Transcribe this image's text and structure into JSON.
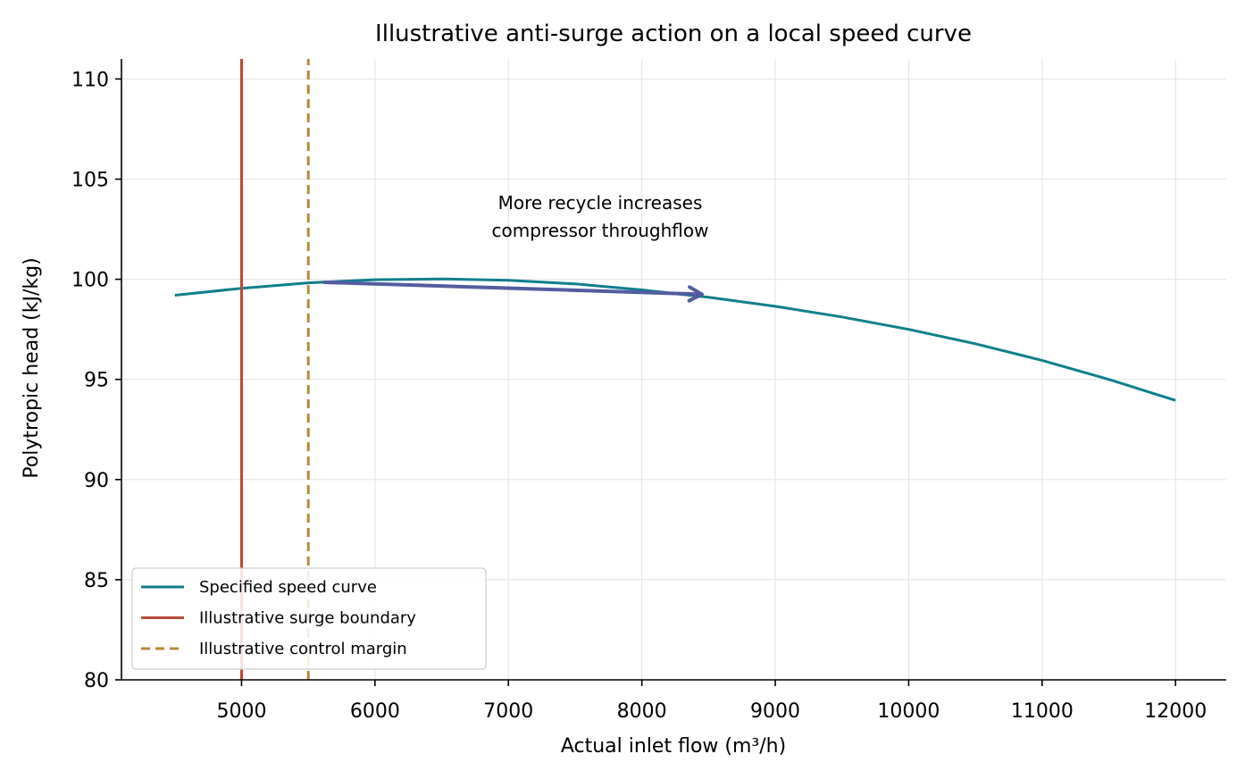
{
  "chart_data": {
    "type": "line",
    "title": "Illustrative anti-surge action on a local speed curve",
    "xlabel": "Actual inlet flow (m³/h)",
    "ylabel": "Polytropic head (kJ/kg)",
    "xlim": [
      4100,
      12380
    ],
    "ylim": [
      80,
      111
    ],
    "xticks": [
      5000,
      6000,
      7000,
      8000,
      9000,
      10000,
      11000,
      12000
    ],
    "yticks": [
      80,
      85,
      90,
      95,
      100,
      105,
      110
    ],
    "grid": true,
    "legend_position": "lower-left",
    "series": [
      {
        "name": "Specified speed curve",
        "color": "#0e7f8b",
        "style": "solid",
        "x": [
          4500,
          5000,
          5500,
          6000,
          6500,
          7000,
          7500,
          8000,
          8500,
          9000,
          9500,
          10000,
          10500,
          11000,
          11500,
          12000
        ],
        "y": [
          99.2,
          99.55,
          99.82,
          99.98,
          100.02,
          99.95,
          99.77,
          99.47,
          99.1,
          98.65,
          98.12,
          97.5,
          96.78,
          95.95,
          95.0,
          93.95
        ]
      },
      {
        "name": "Illustrative surge boundary",
        "color": "#b84a35",
        "style": "solid",
        "x": [
          5000,
          5000
        ],
        "y": [
          80,
          111
        ]
      },
      {
        "name": "Illustrative control margin",
        "color": "#b5883a",
        "style": "dashed",
        "x": [
          5500,
          5500
        ],
        "y": [
          80,
          111
        ]
      }
    ],
    "arrow": {
      "color": "#535c9f",
      "from": [
        5620,
        99.85
      ],
      "to": [
        8450,
        99.25
      ]
    },
    "annotation": {
      "lines": [
        "More recycle increases",
        "compressor throughflow"
      ],
      "x": 7700,
      "y": 103.3
    }
  }
}
